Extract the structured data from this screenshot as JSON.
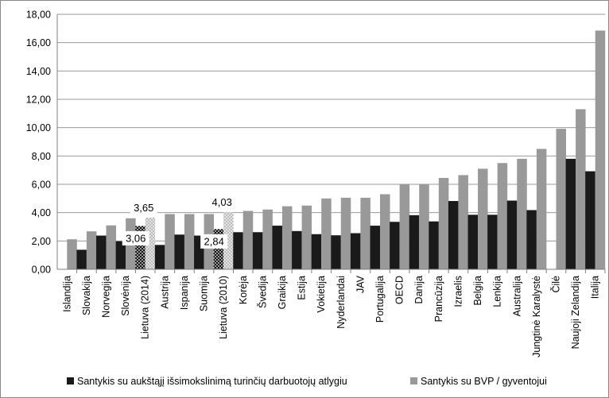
{
  "chart_data": {
    "type": "bar",
    "categories": [
      "Islandija",
      "Slovakija",
      "Norvegija",
      "Slovėnija",
      "Lietuva (2014)",
      "Austrija",
      "Ispanija",
      "Suomija",
      "Lietuva (2010)",
      "Korėja",
      "Švedija",
      "Graikija",
      "Estija",
      "Vokietija",
      "Nyderlandai",
      "JAV",
      "Portugalija",
      "OECD",
      "Danija",
      "Prancūzija",
      "Izraelis",
      "Belgija",
      "Lenkija",
      "Australija",
      "Jungtinė Karalystė",
      "Čilė",
      "Naujoji Zelandija",
      "Italija"
    ],
    "series": [
      {
        "name": "Santykis su aukštąjį išsimokslinimą turinčių darbuotojų atlygiu",
        "color": "#1a1a1a",
        "values": [
          null,
          1.38,
          2.38,
          1.98,
          3.06,
          1.72,
          2.45,
          2.38,
          2.84,
          2.62,
          2.62,
          3.08,
          2.7,
          2.48,
          2.4,
          2.55,
          3.08,
          3.35,
          3.82,
          3.38,
          4.82,
          3.85,
          3.85,
          4.85,
          4.18,
          null,
          7.8,
          6.92
        ]
      },
      {
        "name": "Santykis su BVP / gyventojui",
        "color": "#999999",
        "values": [
          2.12,
          2.68,
          3.1,
          3.6,
          3.65,
          3.9,
          3.9,
          3.9,
          4.03,
          4.12,
          4.22,
          4.45,
          4.5,
          5.0,
          5.05,
          5.05,
          5.3,
          6.02,
          6.02,
          6.45,
          6.65,
          7.1,
          7.5,
          7.8,
          8.5,
          9.92,
          11.3,
          16.85
        ]
      }
    ],
    "highlight": {
      "categories": [
        "Lietuva (2014)",
        "Lietuva (2010)"
      ],
      "pattern": "dotted"
    },
    "annotations": [
      {
        "category": "Lietuva (2014)",
        "series": 1,
        "text": "3,65"
      },
      {
        "category": "Lietuva (2014)",
        "series": 0,
        "text": "3,06"
      },
      {
        "category": "Lietuva (2010)",
        "series": 1,
        "text": "4,03"
      },
      {
        "category": "Lietuva (2010)",
        "series": 0,
        "text": "2,84"
      }
    ],
    "y_ticks": [
      "0,00",
      "2,00",
      "4,00",
      "6,00",
      "8,00",
      "10,00",
      "12,00",
      "14,00",
      "16,00",
      "18,00"
    ],
    "ylim": [
      0,
      18
    ],
    "grid": true,
    "legend_position": "bottom",
    "title": "",
    "xlabel": "",
    "ylabel": ""
  }
}
